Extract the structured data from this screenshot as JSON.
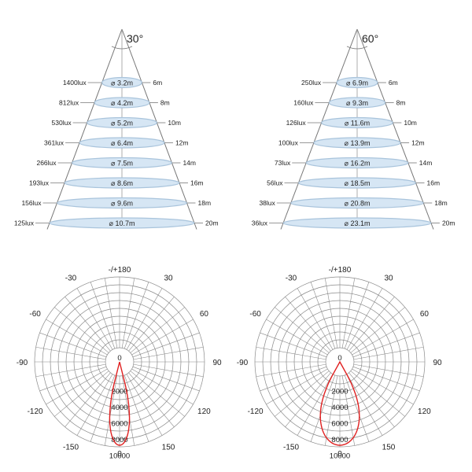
{
  "cones": [
    {
      "angle": "30°",
      "rings": [
        {
          "lux": "1400lux",
          "diameter": "⌀ 3.2m",
          "distance": "6m"
        },
        {
          "lux": "812lux",
          "diameter": "⌀ 4.2m",
          "distance": "8m"
        },
        {
          "lux": "530lux",
          "diameter": "⌀ 5.2m",
          "distance": "10m"
        },
        {
          "lux": "361lux",
          "diameter": "⌀ 6.4m",
          "distance": "12m"
        },
        {
          "lux": "266lux",
          "diameter": "⌀ 7.5m",
          "distance": "14m"
        },
        {
          "lux": "193lux",
          "diameter": "⌀ 8.6m",
          "distance": "16m"
        },
        {
          "lux": "156lux",
          "diameter": "⌀ 9.6m",
          "distance": "18m"
        },
        {
          "lux": "125lux",
          "diameter": "⌀ 10.7m",
          "distance": "20m"
        }
      ]
    },
    {
      "angle": "60°",
      "rings": [
        {
          "lux": "250lux",
          "diameter": "⌀ 6.9m",
          "distance": "6m"
        },
        {
          "lux": "160lux",
          "diameter": "⌀ 9.3m",
          "distance": "8m"
        },
        {
          "lux": "126lux",
          "diameter": "⌀ 11.6m",
          "distance": "10m"
        },
        {
          "lux": "100lux",
          "diameter": "⌀ 13.9m",
          "distance": "12m"
        },
        {
          "lux": "73lux",
          "diameter": "⌀ 16.2m",
          "distance": "14m"
        },
        {
          "lux": "56lux",
          "diameter": "⌀ 18.5m",
          "distance": "16m"
        },
        {
          "lux": "38lux",
          "diameter": "⌀ 20.8m",
          "distance": "18m"
        },
        {
          "lux": "36lux",
          "diameter": "⌀ 23.1m",
          "distance": "20m"
        }
      ]
    }
  ],
  "polar": {
    "angle_labels": {
      "top": "-/+180",
      "left": [
        "-150",
        "-120",
        "-90",
        "-60",
        "-30"
      ],
      "right": [
        "150",
        "120",
        "90",
        "60",
        "30"
      ],
      "bottom": "0"
    },
    "radial_labels": [
      "0",
      "2000",
      "4000",
      "6000",
      "8000",
      "10000"
    ],
    "curve_color": "#e02020",
    "plots": [
      {
        "beam_angle": "30°"
      },
      {
        "beam_angle": "60°"
      }
    ]
  },
  "colors": {
    "ellipse_fill": "#d6e6f4",
    "ellipse_stroke": "#a9c4dc",
    "line": "#777777"
  }
}
